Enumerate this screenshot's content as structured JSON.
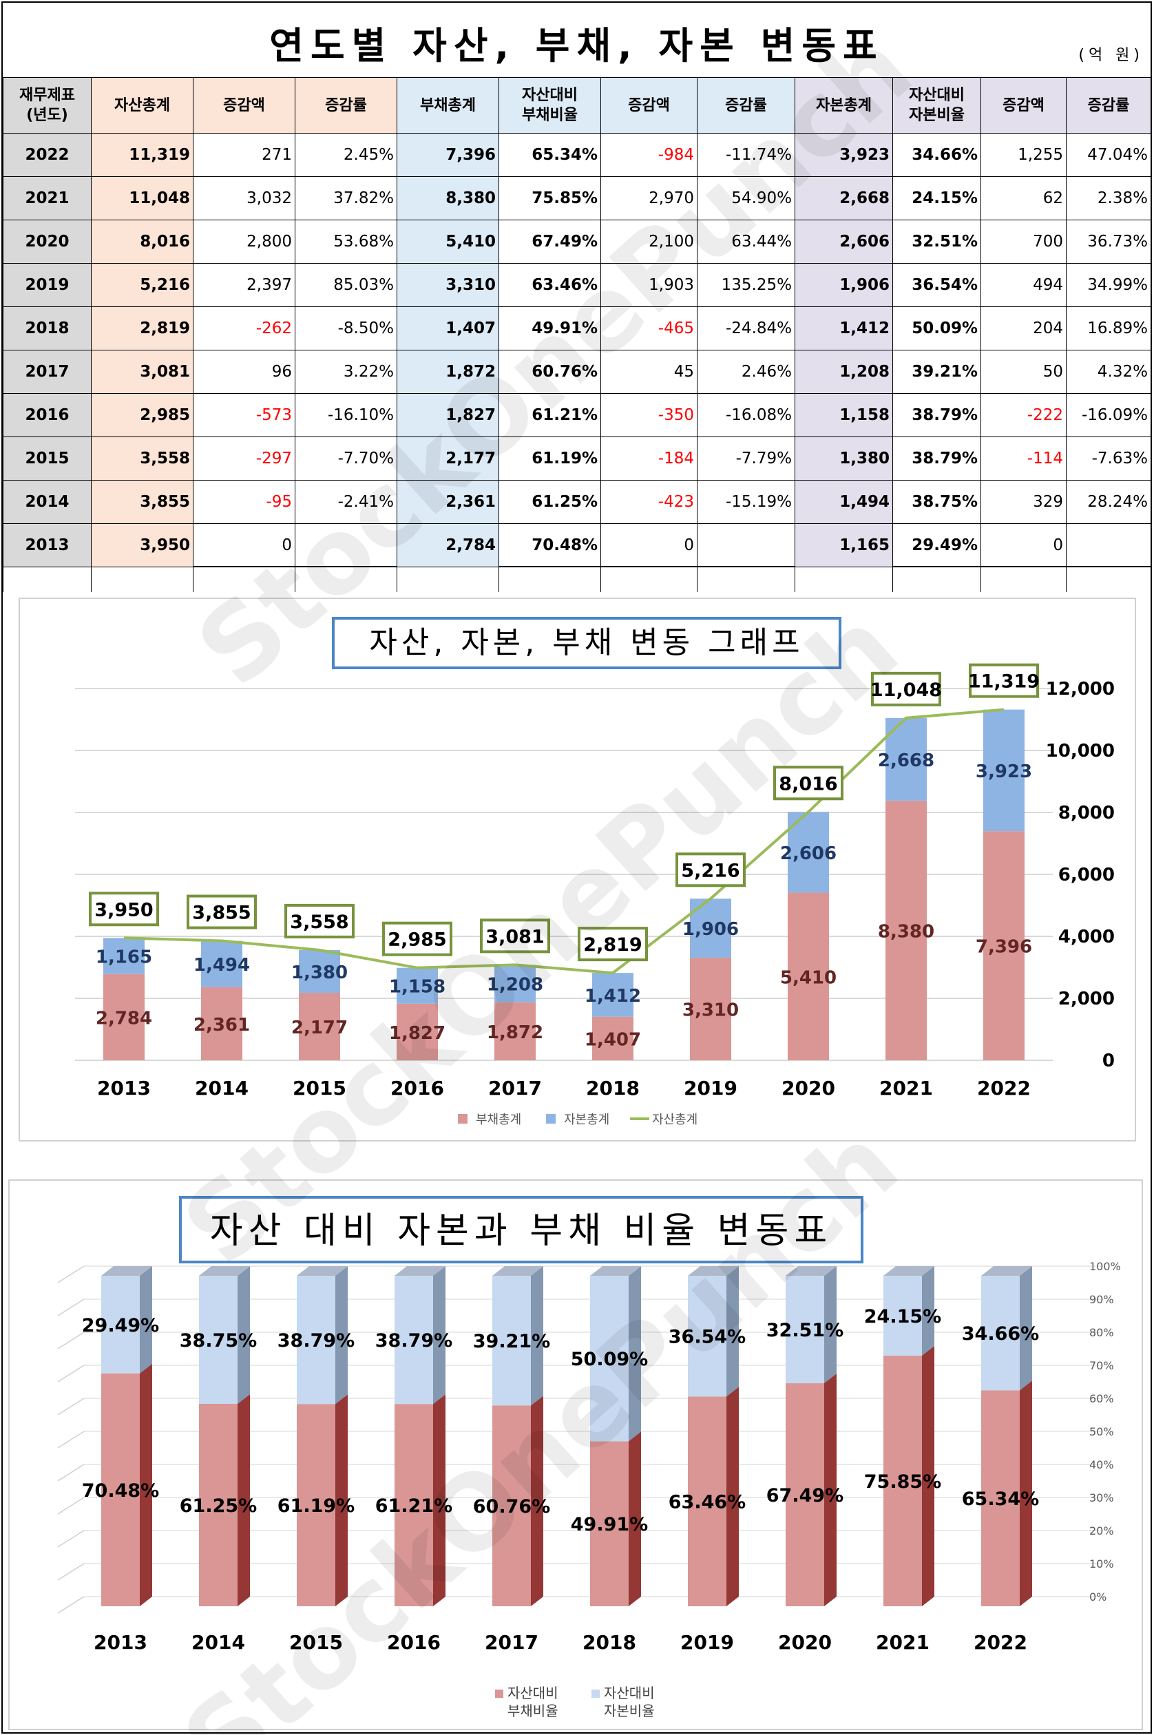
{
  "table": {
    "title": "연도별 자산, 부채, 자본 변동표",
    "unit": "(억 원)",
    "headers": [
      "재무제표\n(년도)",
      "자산총계",
      "증감액",
      "증감률",
      "부채총계",
      "자산대비\n부채비율",
      "증감액",
      "증감률",
      "자본총계",
      "자산대비\n자본비율",
      "증감액",
      "증감률"
    ],
    "rows": [
      {
        "year": "2022",
        "assets": "11,319",
        "a_chg": "271",
        "a_rate": "2.45%",
        "liab": "7,396",
        "liab_ratio": "65.34%",
        "l_chg": "-984",
        "l_rate": "-11.74%",
        "equity": "3,923",
        "eq_ratio": "34.66%",
        "e_chg": "1,255",
        "e_rate": "47.04%"
      },
      {
        "year": "2021",
        "assets": "11,048",
        "a_chg": "3,032",
        "a_rate": "37.82%",
        "liab": "8,380",
        "liab_ratio": "75.85%",
        "l_chg": "2,970",
        "l_rate": "54.90%",
        "equity": "2,668",
        "eq_ratio": "24.15%",
        "e_chg": "62",
        "e_rate": "2.38%"
      },
      {
        "year": "2020",
        "assets": "8,016",
        "a_chg": "2,800",
        "a_rate": "53.68%",
        "liab": "5,410",
        "liab_ratio": "67.49%",
        "l_chg": "2,100",
        "l_rate": "63.44%",
        "equity": "2,606",
        "eq_ratio": "32.51%",
        "e_chg": "700",
        "e_rate": "36.73%"
      },
      {
        "year": "2019",
        "assets": "5,216",
        "a_chg": "2,397",
        "a_rate": "85.03%",
        "liab": "3,310",
        "liab_ratio": "63.46%",
        "l_chg": "1,903",
        "l_rate": "135.25%",
        "equity": "1,906",
        "eq_ratio": "36.54%",
        "e_chg": "494",
        "e_rate": "34.99%"
      },
      {
        "year": "2018",
        "assets": "2,819",
        "a_chg": "-262",
        "a_rate": "-8.50%",
        "liab": "1,407",
        "liab_ratio": "49.91%",
        "l_chg": "-465",
        "l_rate": "-24.84%",
        "equity": "1,412",
        "eq_ratio": "50.09%",
        "e_chg": "204",
        "e_rate": "16.89%"
      },
      {
        "year": "2017",
        "assets": "3,081",
        "a_chg": "96",
        "a_rate": "3.22%",
        "liab": "1,872",
        "liab_ratio": "60.76%",
        "l_chg": "45",
        "l_rate": "2.46%",
        "equity": "1,208",
        "eq_ratio": "39.21%",
        "e_chg": "50",
        "e_rate": "4.32%"
      },
      {
        "year": "2016",
        "assets": "2,985",
        "a_chg": "-573",
        "a_rate": "-16.10%",
        "liab": "1,827",
        "liab_ratio": "61.21%",
        "l_chg": "-350",
        "l_rate": "-16.08%",
        "equity": "1,158",
        "eq_ratio": "38.79%",
        "e_chg": "-222",
        "e_rate": "-16.09%"
      },
      {
        "year": "2015",
        "assets": "3,558",
        "a_chg": "-297",
        "a_rate": "-7.70%",
        "liab": "2,177",
        "liab_ratio": "61.19%",
        "l_chg": "-184",
        "l_rate": "-7.79%",
        "equity": "1,380",
        "eq_ratio": "38.79%",
        "e_chg": "-114",
        "e_rate": "-7.63%"
      },
      {
        "year": "2014",
        "assets": "3,855",
        "a_chg": "-95",
        "a_rate": "-2.41%",
        "liab": "2,361",
        "liab_ratio": "61.25%",
        "l_chg": "-423",
        "l_rate": "-15.19%",
        "equity": "1,494",
        "eq_ratio": "38.75%",
        "e_chg": "329",
        "e_rate": "28.24%"
      },
      {
        "year": "2013",
        "assets": "3,950",
        "a_chg": "0",
        "a_rate": "",
        "liab": "2,784",
        "liab_ratio": "70.48%",
        "l_chg": "0",
        "l_rate": "",
        "equity": "1,165",
        "eq_ratio": "29.49%",
        "e_chg": "0",
        "e_rate": ""
      }
    ]
  },
  "chart_data": [
    {
      "type": "bar",
      "stacked": true,
      "title": "자산, 자본, 부채 변동 그래프",
      "categories": [
        "2013",
        "2014",
        "2015",
        "2016",
        "2017",
        "2018",
        "2019",
        "2020",
        "2021",
        "2022"
      ],
      "series": [
        {
          "name": "부채총계",
          "type": "bar",
          "color": "#d99694",
          "values": [
            2784,
            2361,
            2177,
            1827,
            1872,
            1407,
            3310,
            5410,
            8380,
            7396
          ],
          "labels": [
            "2,784",
            "2,361",
            "2,177",
            "1,827",
            "1,872",
            "1,407",
            "3,310",
            "5,410",
            "8,380",
            "7,396"
          ]
        },
        {
          "name": "자본총계",
          "type": "bar",
          "color": "#8eb4e3",
          "values": [
            1165,
            1494,
            1380,
            1158,
            1208,
            1412,
            1906,
            2606,
            2668,
            3923
          ],
          "labels": [
            "1,165",
            "1,494",
            "1,380",
            "1,158",
            "1,208",
            "1,412",
            "1,906",
            "2,606",
            "2,668",
            "3,923"
          ]
        },
        {
          "name": "자산총계",
          "type": "line",
          "color": "#9bbb59",
          "values": [
            3950,
            3855,
            3558,
            2985,
            3081,
            2819,
            5216,
            8016,
            11048,
            11319
          ],
          "labels": [
            "3,950",
            "3,855",
            "3,558",
            "2,985",
            "3,081",
            "2,819",
            "5,216",
            "8,016",
            "11,048",
            "11,319"
          ]
        }
      ],
      "yaxis": {
        "side": "right",
        "min": 0,
        "max": 12000,
        "ticks": [
          "0",
          "2,000",
          "4,000",
          "6,000",
          "8,000",
          "10,000",
          "12,000"
        ]
      },
      "grid": true,
      "legend": "bottom"
    },
    {
      "type": "bar",
      "stacked": true,
      "percent": true,
      "three_d": true,
      "title": "자산 대비 자본과 부채 비율 변동표",
      "categories": [
        "2013",
        "2014",
        "2015",
        "2016",
        "2017",
        "2018",
        "2019",
        "2020",
        "2021",
        "2022"
      ],
      "series": [
        {
          "name": "자산대비\n부채비율",
          "color": "#d99694",
          "values": [
            70.48,
            61.25,
            61.19,
            61.21,
            60.76,
            49.91,
            63.46,
            67.49,
            75.85,
            65.34
          ],
          "labels": [
            "70.48%",
            "61.25%",
            "61.19%",
            "61.21%",
            "60.76%",
            "49.91%",
            "63.46%",
            "67.49%",
            "75.85%",
            "65.34%"
          ]
        },
        {
          "name": "자산대비\n자본비율",
          "color": "#c6d9f1",
          "values": [
            29.49,
            38.75,
            38.79,
            38.79,
            39.21,
            50.09,
            36.54,
            32.51,
            24.15,
            34.66
          ],
          "labels": [
            "29.49%",
            "38.75%",
            "38.79%",
            "38.79%",
            "39.21%",
            "50.09%",
            "36.54%",
            "32.51%",
            "24.15%",
            "34.66%"
          ]
        }
      ],
      "yaxis": {
        "side": "right",
        "min": 0,
        "max": 100,
        "ticks": [
          "0%",
          "10%",
          "20%",
          "30%",
          "40%",
          "50%",
          "60%",
          "70%",
          "80%",
          "90%",
          "100%"
        ]
      },
      "grid": true,
      "legend": "bottom"
    }
  ],
  "watermark": "StockOnePunch",
  "colors": {
    "peach": "#fce4d6",
    "light_blue": "#ddebf7",
    "lavender": "#e4dfec",
    "gray": "#d9d9d9",
    "negative": "#ff0000",
    "title_border": "#4a86c8"
  }
}
